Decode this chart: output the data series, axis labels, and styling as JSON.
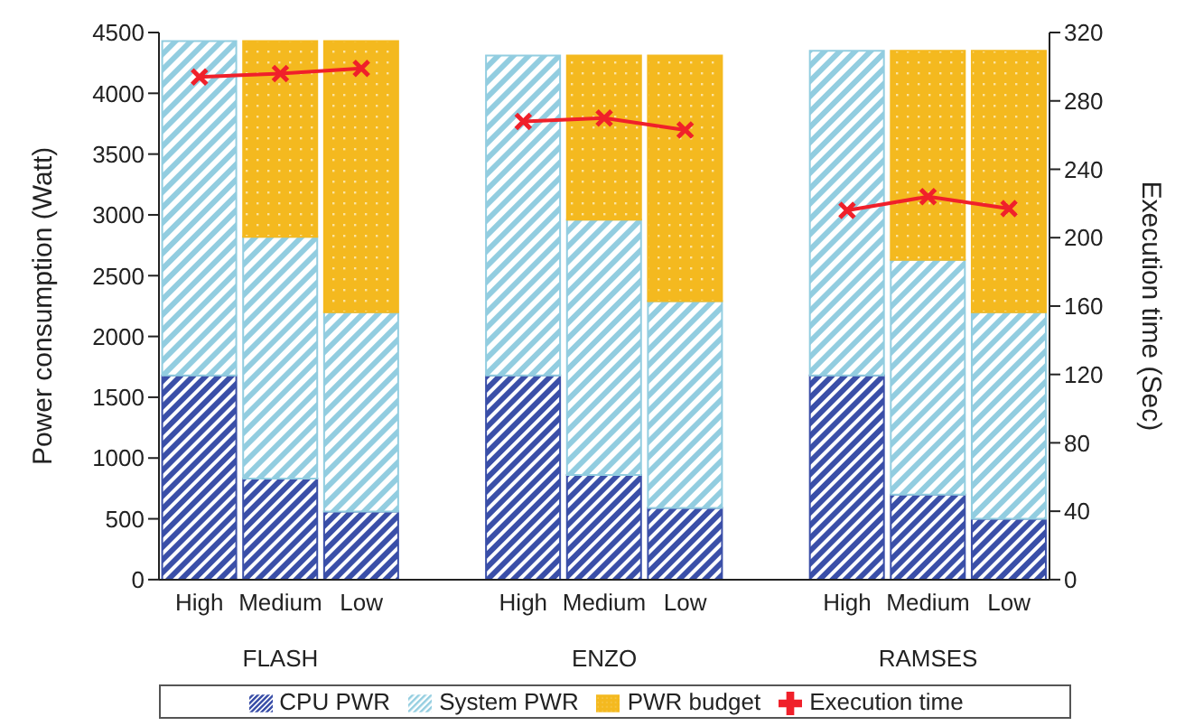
{
  "chart_data": {
    "type": "bar",
    "stacked": true,
    "ylabel": "Power consumption (Watt)",
    "y2label": "Execution time (Sec)",
    "categories": [
      "High",
      "Medium",
      "Low",
      null,
      "High",
      "Medium",
      "Low",
      null,
      "High",
      "Medium",
      "Low"
    ],
    "annotations": [
      "FLASH",
      "ENZO",
      "RAMSES"
    ],
    "series": [
      {
        "name": "CPU PWR",
        "color": "#3a4fa8",
        "values": [
          1680,
          830,
          560,
          null,
          1680,
          860,
          590,
          null,
          1680,
          700,
          500
        ]
      },
      {
        "name": "System PWR",
        "color": "#92cde0",
        "values": [
          2750,
          1990,
          1640,
          null,
          2630,
          2100,
          1700,
          null,
          2670,
          1930,
          1700
        ]
      },
      {
        "name": "PWR budget",
        "color": "#f4b91f",
        "values": [
          null,
          1610,
          2230,
          null,
          null,
          1350,
          2020,
          null,
          null,
          1720,
          2150
        ]
      },
      {
        "name": "Execution time",
        "type": "line",
        "axis": "y2",
        "color": "#f0202a",
        "marker": "cross",
        "values": [
          294,
          296,
          299,
          null,
          268,
          270,
          263,
          null,
          216,
          224,
          217
        ]
      }
    ],
    "ylim": [
      0,
      4500
    ],
    "yticks": [
      0,
      500,
      1000,
      1500,
      2000,
      2500,
      3000,
      3500,
      4000,
      4500
    ],
    "y2lim": [
      0,
      320
    ],
    "y2ticks": [
      0,
      40,
      80,
      120,
      160,
      200,
      240,
      280,
      320
    ],
    "grid": false,
    "legend": "bottom"
  }
}
